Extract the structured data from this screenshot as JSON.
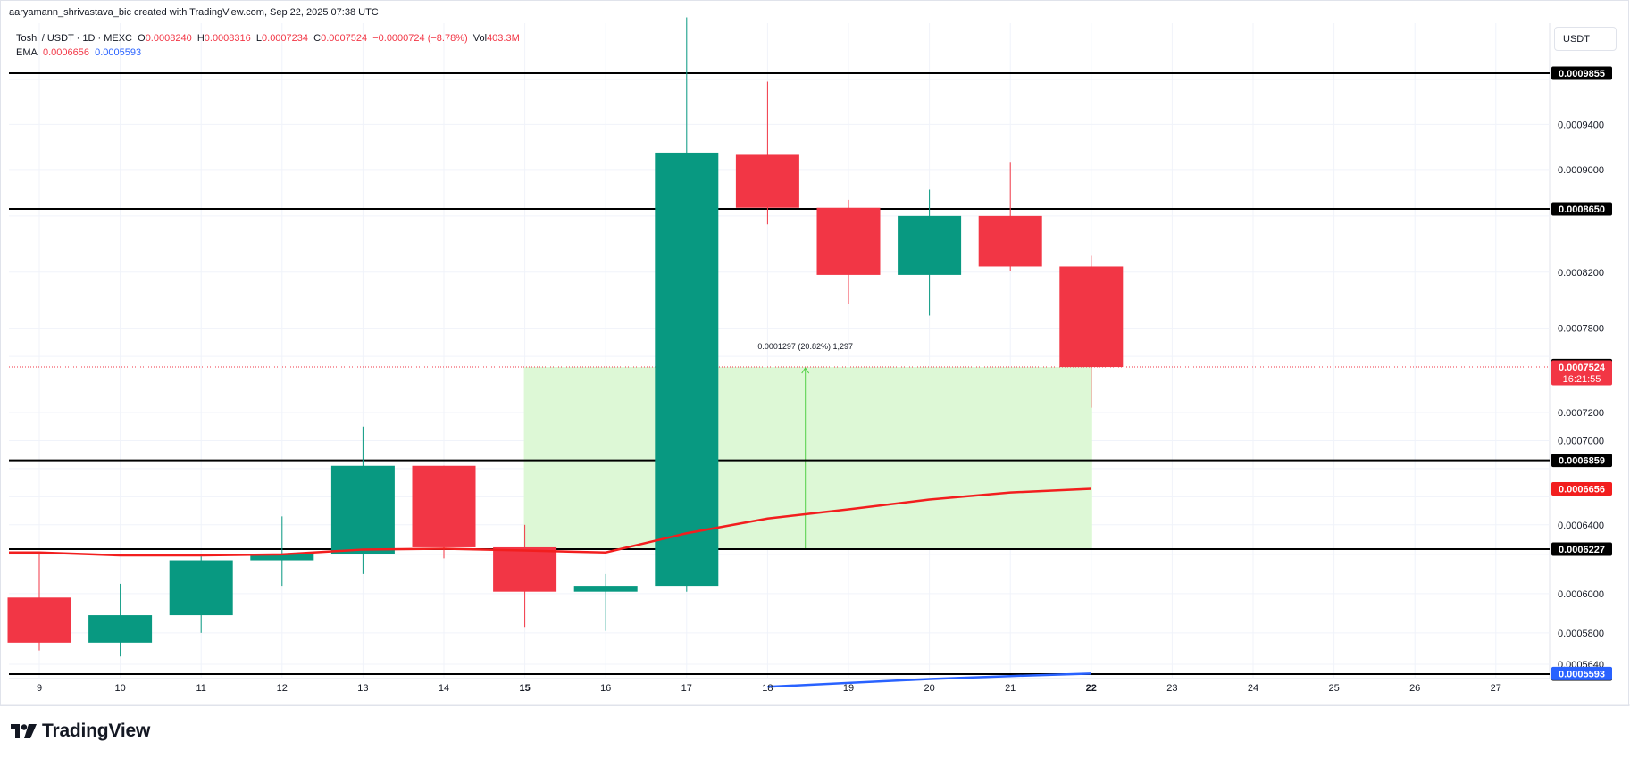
{
  "header": {
    "credit": "aaryamann_shrivastava_bic created with TradingView.com, Sep 22, 2025 07:38 UTC"
  },
  "legend": {
    "symbol": "Toshi / USDT · 1D · MEXC",
    "o_label": "O",
    "o_value": "0.0008240",
    "h_label": "H",
    "h_value": "0.0008316",
    "l_label": "L",
    "l_value": "0.0007234",
    "c_label": "C",
    "c_value": "0.0007524",
    "change": "−0.0000724 (−8.78%)",
    "vol_label": "Vol",
    "vol_value": "403.3M",
    "ema_label": "EMA",
    "ema_value1": "0.0006656",
    "ema_value2": "0.0005593"
  },
  "currency_button": "USDT",
  "brand": {
    "name": "TradingView"
  },
  "colors": {
    "up": "#089981",
    "down": "#f23645",
    "ema_fast": "#f21e1e",
    "ema_slow": "#2962ff",
    "zone_fill": "#ddf8d6",
    "zone_line": "#53d147",
    "level_line": "#000000",
    "grid": "#f0f3fa"
  },
  "chart_data": {
    "type": "candlestick",
    "x_tick_labels": [
      "9",
      "10",
      "11",
      "12",
      "13",
      "14",
      "15",
      "16",
      "17",
      "18",
      "19",
      "20",
      "21",
      "22",
      "23",
      "24",
      "25",
      "26",
      "27"
    ],
    "bold_x_tick_labels": [
      "15",
      "22"
    ],
    "y_tick_labels": [
      "0.0009400",
      "0.0009000",
      "0.0008200",
      "0.0007800",
      "0.0007200",
      "0.0007000",
      "0.0006400",
      "0.0006000",
      "0.0005800",
      "0.0005640"
    ],
    "ylim": [
      0.000554,
      0.001035
    ],
    "candles": [
      {
        "day": "9",
        "open": 0.000598,
        "high": 0.000621,
        "low": 0.000571,
        "close": 0.000575
      },
      {
        "day": "10",
        "open": 0.000575,
        "high": 0.000605,
        "low": 0.000568,
        "close": 0.000589
      },
      {
        "day": "11",
        "open": 0.000589,
        "high": 0.000619,
        "low": 0.00058,
        "close": 0.000617
      },
      {
        "day": "12",
        "open": 0.000617,
        "high": 0.000646,
        "low": 0.000604,
        "close": 0.00062
      },
      {
        "day": "13",
        "open": 0.00062,
        "high": 0.00071,
        "low": 0.00061,
        "close": 0.000682
      },
      {
        "day": "14",
        "open": 0.000682,
        "high": 0.000682,
        "low": 0.000618,
        "close": 0.000624
      },
      {
        "day": "15",
        "open": 0.000624,
        "high": 0.00064,
        "low": 0.000583,
        "close": 0.000601
      },
      {
        "day": "16",
        "open": 0.000601,
        "high": 0.00061,
        "low": 0.000581,
        "close": 0.000604
      },
      {
        "day": "17",
        "open": 0.000604,
        "high": 0.001035,
        "low": 0.000601,
        "close": 0.000915
      },
      {
        "day": "18",
        "open": 0.000913,
        "high": 0.000978,
        "low": 0.000854,
        "close": 0.000866
      },
      {
        "day": "19",
        "open": 0.000866,
        "high": 0.000873,
        "low": 0.000797,
        "close": 0.000818
      },
      {
        "day": "20",
        "open": 0.000818,
        "high": 0.000882,
        "low": 0.000789,
        "close": 0.00086
      },
      {
        "day": "21",
        "open": 0.00086,
        "high": 0.000906,
        "low": 0.000821,
        "close": 0.000824
      },
      {
        "day": "22",
        "open": 0.000824,
        "high": 0.0008316,
        "low": 0.0007234,
        "close": 0.0007524
      }
    ],
    "ema_fast": {
      "name": "EMA",
      "points": [
        {
          "day": "9",
          "value": 0.000621
        },
        {
          "day": "10",
          "value": 0.0006195
        },
        {
          "day": "11",
          "value": 0.0006195
        },
        {
          "day": "12",
          "value": 0.00062
        },
        {
          "day": "13",
          "value": 0.0006225
        },
        {
          "day": "14",
          "value": 0.000623
        },
        {
          "day": "15",
          "value": 0.000622
        },
        {
          "day": "16",
          "value": 0.000621
        },
        {
          "day": "17",
          "value": 0.000634
        },
        {
          "day": "18",
          "value": 0.0006445
        },
        {
          "day": "19",
          "value": 0.000651
        },
        {
          "day": "20",
          "value": 0.000658
        },
        {
          "day": "21",
          "value": 0.000663
        },
        {
          "day": "22",
          "value": 0.0006656
        }
      ]
    },
    "ema_slow": {
      "name": "EMA",
      "points": [
        {
          "day": "18",
          "value": 0.0005525
        },
        {
          "day": "19",
          "value": 0.0005545
        },
        {
          "day": "20",
          "value": 0.0005565
        },
        {
          "day": "21",
          "value": 0.000558
        },
        {
          "day": "22",
          "value": 0.0005593
        }
      ]
    },
    "horizontal_levels": [
      {
        "value": 0.0009855,
        "label": "0.0009855"
      },
      {
        "value": 0.000865,
        "label": "0.0008650"
      },
      {
        "value": 0.0006859,
        "label": "0.0006859"
      },
      {
        "value": 0.0006227,
        "label": "0.0006227"
      },
      {
        "value": 0.000559,
        "label": "0.0005590"
      }
    ],
    "price_range_tool": {
      "from_day": "15",
      "to_day": "22",
      "low": 0.0006227,
      "high": 0.0007524,
      "label": "0.0001297 (20.82%) 1,297"
    },
    "price_tags": [
      {
        "value": 0.0007535,
        "label": "0.0007535",
        "style": "level"
      },
      {
        "value": 0.0007524,
        "label": "0.0007524",
        "countdown": "16:21:55",
        "style": "last"
      },
      {
        "value": 0.0006656,
        "label": "0.0006656",
        "style": "ema_fast"
      },
      {
        "value": 0.0005593,
        "label": "0.0005593",
        "style": "ema_slow"
      }
    ],
    "grid": true
  }
}
